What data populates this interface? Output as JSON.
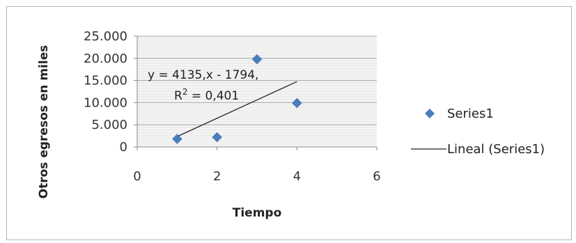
{
  "chart_data": {
    "type": "scatter",
    "xlabel": "Tiempo",
    "ylabel": "Otros egresos en miles",
    "xlim": [
      0,
      6
    ],
    "ylim": [
      0,
      25000
    ],
    "xticks": [
      "0",
      "2",
      "4",
      "6"
    ],
    "yticks": [
      "0",
      "5.000",
      "10.000",
      "15.000",
      "20.000",
      "25.000"
    ],
    "grid": "horizontal",
    "legend_position": "right",
    "series": [
      {
        "name": "Series1",
        "marker": "diamond",
        "color": "#4a7ebb",
        "x": [
          1,
          2,
          3,
          4
        ],
        "y": [
          1800,
          2200,
          19800,
          9900
        ]
      }
    ],
    "trendline": {
      "name": "Lineal (Series1)",
      "type": "linear",
      "slope": 4135,
      "intercept": -1794,
      "x_range": [
        1,
        4
      ],
      "color": "#222222"
    },
    "annotation": {
      "equation": "y = 4135,x - 1794,",
      "r2_prefix": "R",
      "r2_sup": "2",
      "r2_value": " = 0,401"
    }
  }
}
